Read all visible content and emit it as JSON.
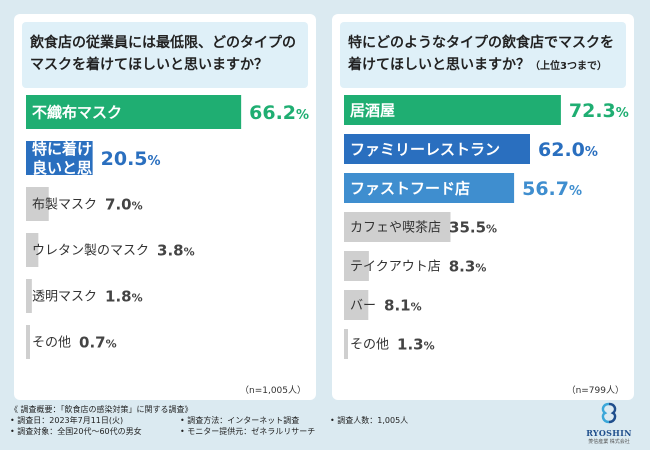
{
  "questions": {
    "left": "飲食店の従業員には最低限、どのタイプのマスクを着けてほしいと思いますか？",
    "right": "特にどのようなタイプの飲食店でマスクを着けてほしいと思いますか？",
    "right_note": "（上位3つまで）"
  },
  "colors": {
    "green": "#1fae72",
    "blue_dark": "#2a6fbf",
    "blue_light": "#3f8ecf",
    "gray": "#cfcfcf",
    "background": "#dbeaf1"
  },
  "chart_data": [
    {
      "type": "bar",
      "orientation": "horizontal",
      "categories": [
        "不織布マスク",
        "特に着けなくても良いと思う",
        "布製マスク",
        "ウレタン製のマスク",
        "透明マスク",
        "その他"
      ],
      "values": [
        66.2,
        20.5,
        7.0,
        3.8,
        1.8,
        0.7
      ],
      "value_labels": [
        [
          "66.2",
          "%"
        ],
        [
          "20.5",
          "%"
        ],
        [
          "7.0",
          "%"
        ],
        [
          "3.8",
          "%"
        ],
        [
          "1.8",
          "%"
        ],
        [
          "0.7",
          "%"
        ]
      ],
      "bar_colors": [
        "#1fae72",
        "#2a6fbf",
        "#cfcfcf",
        "#cfcfcf",
        "#cfcfcf",
        "#cfcfcf"
      ],
      "sample_size": "（n=1,005人）"
    },
    {
      "type": "bar",
      "orientation": "horizontal",
      "categories": [
        "居酒屋",
        "ファミリーレストラン",
        "ファストフード店",
        "カフェや喫茶店",
        "テイクアウト店",
        "バー",
        "その他"
      ],
      "values": [
        72.3,
        62.0,
        56.7,
        35.5,
        8.3,
        8.1,
        1.3
      ],
      "value_labels": [
        [
          "72.3",
          "%"
        ],
        [
          "62.0",
          "%"
        ],
        [
          "56.7",
          "%"
        ],
        [
          "35.5",
          "%"
        ],
        [
          "8.3",
          "%"
        ],
        [
          "8.1",
          "%"
        ],
        [
          "1.3",
          "%"
        ]
      ],
      "bar_colors": [
        "#1fae72",
        "#2a6fbf",
        "#3f8ecf",
        "#cfcfcf",
        "#cfcfcf",
        "#cfcfcf",
        "#cfcfcf"
      ],
      "sample_size": "（n=799人）"
    }
  ],
  "footer": {
    "title": "《 調査概要：「飲食店の感染対策」に関する調査》",
    "date": "• 調査日：2023年7月11日(火)",
    "method": "• 調査方法：インターネット調査",
    "count": "• 調査人数：1,005人",
    "target": "• 調査対象：全国20代〜60代の男女",
    "provider": "• モニター提供元：ゼネラルリサーチ"
  },
  "logo": {
    "name": "RYOSHIN",
    "sub": "菱信産業 株式会社"
  }
}
